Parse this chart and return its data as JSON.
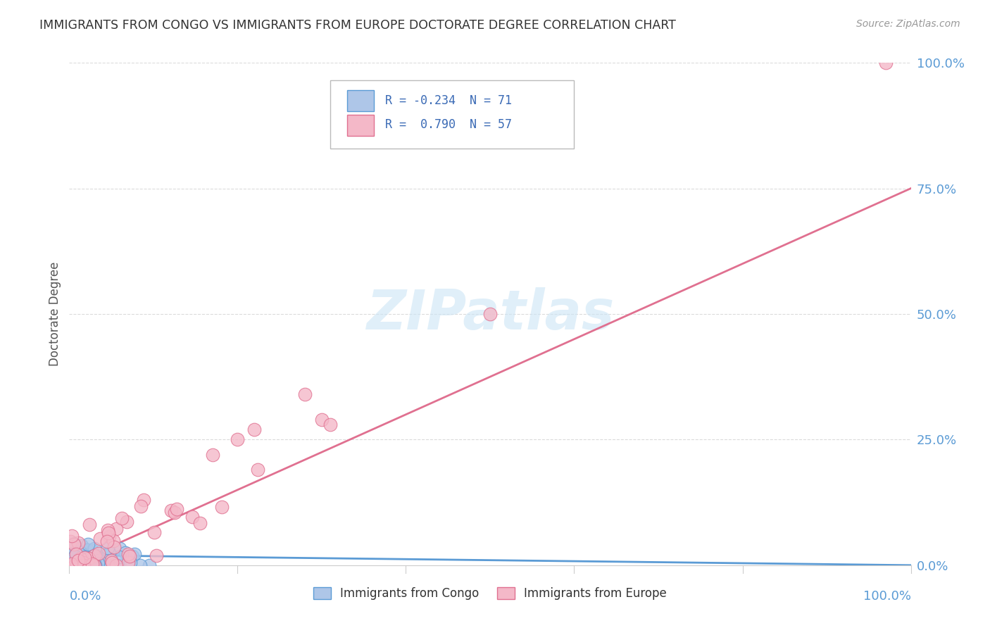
{
  "title": "IMMIGRANTS FROM CONGO VS IMMIGRANTS FROM EUROPE DOCTORATE DEGREE CORRELATION CHART",
  "source": "Source: ZipAtlas.com",
  "ylabel": "Doctorate Degree",
  "ytick_values": [
    0,
    25,
    50,
    75,
    100
  ],
  "legend_entries": [
    {
      "label": "Immigrants from Congo",
      "color": "#aec6e8",
      "edge": "#5b9bd5",
      "R": -0.234,
      "N": 71
    },
    {
      "label": "Immigrants from Europe",
      "color": "#f4b8c8",
      "edge": "#e07090",
      "R": 0.79,
      "N": 57
    }
  ],
  "congo_scatter_color": "#aec6e8",
  "congo_scatter_edge": "#5b9bd5",
  "europe_scatter_color": "#f4b8c8",
  "europe_scatter_edge": "#e07090",
  "congo_line_color": "#5b9bd5",
  "europe_line_color": "#e07090",
  "background_color": "#ffffff",
  "grid_color": "#cccccc",
  "axis_color": "#cccccc",
  "title_color": "#333333",
  "source_color": "#999999",
  "tick_color": "#5b9bd5",
  "xlim": [
    0,
    100
  ],
  "ylim": [
    0,
    100
  ],
  "congo_R": -0.234,
  "congo_N": 71,
  "europe_R": 0.79,
  "europe_N": 57,
  "europe_line_x0": 0,
  "europe_line_y0": 0,
  "europe_line_x1": 100,
  "europe_line_y1": 75,
  "congo_line_x0": 0,
  "congo_line_y0": 2,
  "congo_line_x1": 100,
  "congo_line_y1": 0
}
